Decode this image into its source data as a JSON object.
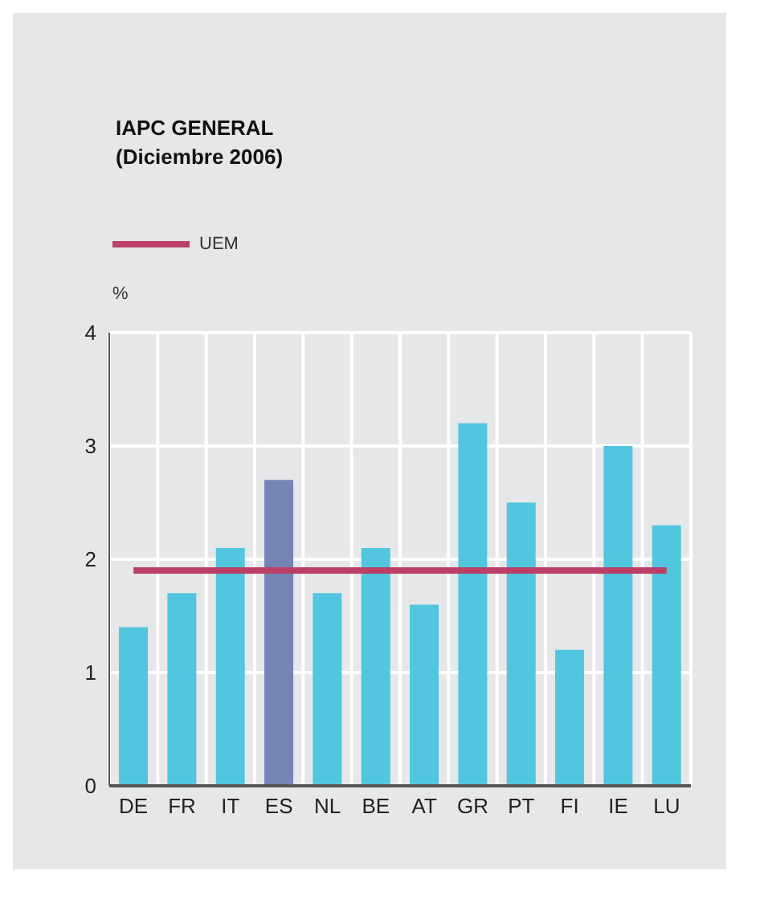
{
  "chart_data": {
    "type": "bar",
    "title": "IAPC GENERAL",
    "subtitle": "(Diciembre 2006)",
    "ylabel": "%",
    "categories": [
      "DE",
      "FR",
      "IT",
      "ES",
      "NL",
      "BE",
      "AT",
      "GR",
      "PT",
      "FI",
      "IE",
      "LU"
    ],
    "series": [
      {
        "values": [
          1.4,
          1.7,
          2.1,
          2.7,
          1.7,
          2.1,
          1.6,
          3.2,
          2.5,
          1.2,
          3.0,
          2.3
        ],
        "colors": [
          "#52c6df",
          "#52c6df",
          "#52c6df",
          "#7484b4",
          "#52c6df",
          "#52c6df",
          "#52c6df",
          "#52c6df",
          "#52c6df",
          "#52c6df",
          "#52c6df",
          "#52c6df"
        ]
      },
      {
        "type": "line",
        "name": "UEM",
        "color": "#bb3f66",
        "values": [
          1.9,
          1.9,
          1.9,
          1.9,
          1.9,
          1.9,
          1.9,
          1.9,
          1.9,
          1.9,
          1.9,
          1.9
        ]
      }
    ],
    "ylim": [
      0,
      4
    ],
    "yticks": [
      0,
      1,
      2,
      3,
      4
    ],
    "grid": true,
    "legend": "top left",
    "marker": "none"
  }
}
